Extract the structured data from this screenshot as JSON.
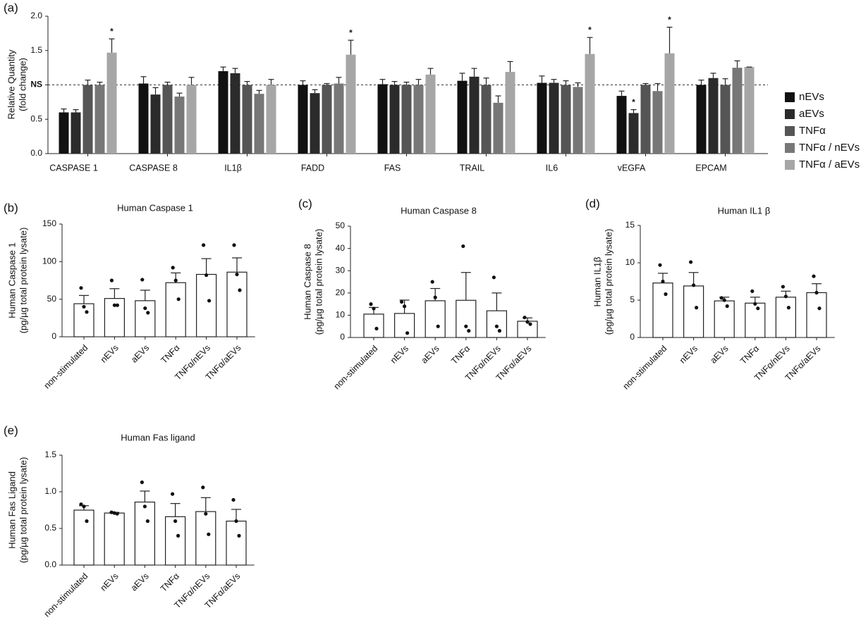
{
  "chart_data": [
    {
      "type": "bar",
      "label": "(a)",
      "ylabel": [
        "Relative Quantity",
        "(fold change)"
      ],
      "categories": [
        "CASPASE 1",
        "CASPASE 8",
        "IL1β",
        "FADD",
        "FAS",
        "TRAIL",
        "IL6",
        "vEGFA",
        "EPCAM"
      ],
      "series": [
        {
          "name": "nEVs",
          "color": "#111111",
          "values": [
            0.6,
            1.02,
            1.2,
            1.0,
            1.01,
            1.06,
            1.03,
            0.84,
            1.0
          ],
          "errors": [
            0.05,
            0.1,
            0.06,
            0.06,
            0.07,
            0.11,
            0.1,
            0.07,
            0.07
          ]
        },
        {
          "name": "aEVs",
          "color": "#2b2b2b",
          "values": [
            0.6,
            0.86,
            1.17,
            0.88,
            1.0,
            1.12,
            1.03,
            0.59,
            1.1
          ],
          "errors": [
            0.04,
            0.1,
            0.07,
            0.05,
            0.05,
            0.12,
            0.05,
            0.05,
            0.07
          ]
        },
        {
          "name": "TNFα",
          "color": "#555555",
          "values": [
            1.0,
            1.0,
            1.0,
            1.0,
            1.0,
            1.0,
            1.0,
            1.0,
            1.0
          ],
          "errors": [
            0.07,
            0.04,
            0.05,
            0.02,
            0.04,
            0.1,
            0.06,
            0.02,
            0.09
          ]
        },
        {
          "name": "TNFα / nEVs",
          "color": "#777777",
          "values": [
            1.0,
            0.83,
            0.87,
            1.02,
            1.0,
            0.74,
            0.97,
            0.91,
            1.25
          ],
          "errors": [
            0.04,
            0.05,
            0.05,
            0.09,
            0.08,
            0.1,
            0.06,
            0.11,
            0.1
          ]
        },
        {
          "name": "TNFα / aEVs",
          "color": "#a6a6a6",
          "values": [
            1.47,
            1.0,
            1.0,
            1.44,
            1.15,
            1.19,
            1.45,
            1.46,
            1.26
          ],
          "errors": [
            0.2,
            0.11,
            0.08,
            0.21,
            0.09,
            0.15,
            0.24,
            0.38,
            0
          ]
        }
      ],
      "annotations": [
        {
          "text": "*",
          "category": 0,
          "series": 4
        },
        {
          "text": "*",
          "category": 3,
          "series": 4
        },
        {
          "text": "*",
          "category": 6,
          "series": 4
        },
        {
          "text": "*",
          "category": 7,
          "series": 1
        },
        {
          "text": "*",
          "category": 7,
          "series": 4
        }
      ],
      "reference_line": 1,
      "ylim": [
        0,
        2
      ],
      "yticks": [
        {
          "value": 0,
          "label": "0.0"
        },
        0.5,
        {
          "value": 1,
          "label": "NS"
        },
        1.5,
        {
          "value": 2,
          "label": "2.0"
        }
      ],
      "legend": "right"
    },
    {
      "type": "bar",
      "label": "(b)",
      "title": "Human Caspase 1",
      "ylabel": [
        "Human Caspase 1",
        "(pg/µg total protein lysate)"
      ],
      "categories": [
        "non-stimulated",
        "nEVs",
        "aEVs",
        "TNFα",
        "TNFα/nEVs",
        "TNFα/aEVs"
      ],
      "values": [
        44,
        51,
        48,
        72,
        83,
        86
      ],
      "errors": [
        11,
        13,
        14,
        13,
        21,
        19
      ],
      "points": [
        [
          65,
          40,
          33
        ],
        [
          75,
          42,
          42
        ],
        [
          76,
          38,
          32
        ],
        [
          92,
          75,
          50
        ],
        [
          122,
          82,
          48
        ],
        [
          122,
          83,
          62
        ]
      ],
      "color": "#ffffff",
      "ylim": [
        0,
        150
      ],
      "yticks": [
        0,
        50,
        100,
        150
      ]
    },
    {
      "type": "bar",
      "label": "(c)",
      "title": "Human Caspase 8",
      "ylabel": [
        "Human Caspase 8",
        "(pg/µg total protein lysate)"
      ],
      "categories": [
        "non-stimulated",
        "nEVs",
        "aEVs",
        "TNFα",
        "TNFα/nEVs",
        "TNFα/aEVs"
      ],
      "values": [
        10.5,
        10.8,
        16.5,
        16.7,
        12,
        7.3
      ],
      "errors": [
        3,
        6,
        5.5,
        12.5,
        8,
        1.5
      ],
      "points": [
        [
          15,
          13,
          4
        ],
        [
          16,
          14,
          2
        ],
        [
          25,
          18,
          5
        ],
        [
          41,
          5,
          3
        ],
        [
          27,
          5,
          3
        ],
        [
          9,
          7,
          6
        ]
      ],
      "color": "#ffffff",
      "ylim": [
        0,
        50
      ],
      "yticks": [
        0,
        10,
        20,
        30,
        40,
        50
      ]
    },
    {
      "type": "bar",
      "label": "(d)",
      "title": "Human IL1  β",
      "ylabel": [
        "Human IL1β",
        "(pg/µg total protein lysate)"
      ],
      "categories": [
        "non-stimulated",
        "nEVs",
        "aEVs",
        "TNFα",
        "TNFα/nEVs",
        "TNFα/aEVs"
      ],
      "values": [
        7.3,
        6.9,
        4.9,
        4.6,
        5.4,
        6.0
      ],
      "errors": [
        1.3,
        1.8,
        0.5,
        0.8,
        0.8,
        1.2
      ],
      "points": [
        [
          9.7,
          7.5,
          5.8
        ],
        [
          10.1,
          7.0,
          4.0
        ],
        [
          5.3,
          5.0,
          4.2
        ],
        [
          6.2,
          4.5,
          3.9
        ],
        [
          6.8,
          5.5,
          4.0
        ],
        [
          8.2,
          6.0,
          3.9
        ]
      ],
      "color": "#ffffff",
      "ylim": [
        0,
        15
      ],
      "yticks": [
        0,
        5,
        10,
        15
      ]
    },
    {
      "type": "bar",
      "label": "(e)",
      "title": "Human Fas ligand",
      "ylabel": [
        "Human Fas Ligand",
        "(pg/µg total protein lysate)"
      ],
      "categories": [
        "non-stimulated",
        "nEVs",
        "aEVs",
        "TNFα",
        "TNFα/nEVs",
        "TNFα/aEVs"
      ],
      "values": [
        0.75,
        0.71,
        0.86,
        0.66,
        0.73,
        0.6
      ],
      "errors": [
        0.06,
        0.01,
        0.15,
        0.18,
        0.19,
        0.16
      ],
      "points": [
        [
          0.83,
          0.8,
          0.6
        ],
        [
          0.72,
          0.71,
          0.7
        ],
        [
          1.13,
          0.8,
          0.6
        ],
        [
          0.97,
          0.6,
          0.4
        ],
        [
          1.06,
          0.7,
          0.42
        ],
        [
          0.89,
          0.6,
          0.4
        ]
      ],
      "color": "#ffffff",
      "ylim": [
        0,
        1.5
      ],
      "yticks": [
        {
          "value": 0,
          "label": "0.0"
        },
        0.5,
        {
          "value": 1,
          "label": "1.0"
        },
        1.5
      ]
    }
  ]
}
